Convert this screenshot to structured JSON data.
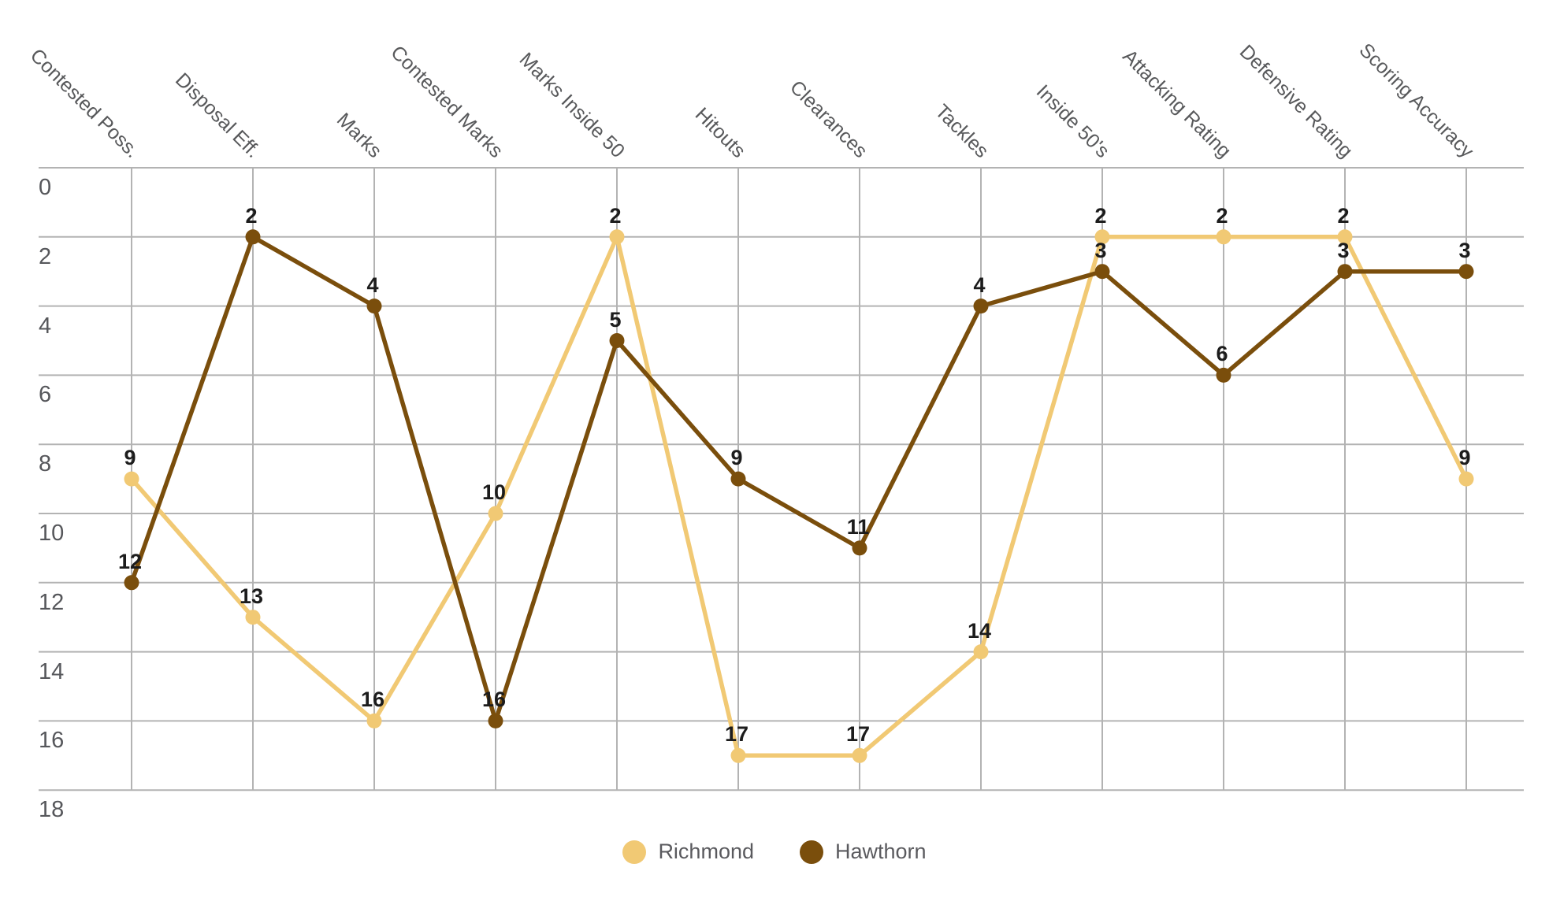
{
  "chart_data": {
    "type": "line",
    "title": "",
    "categories": [
      "Contested Poss.",
      "Disposal Eff.",
      "Marks",
      "Contested Marks",
      "Marks Inside 50",
      "Hitouts",
      "Clearances",
      "Tackles",
      "Inside 50's",
      "Attacking Rating",
      "Defensive Rating",
      "Scoring Accuracy"
    ],
    "series": [
      {
        "name": "Richmond",
        "color": "#F1C974",
        "values": [
          9,
          13,
          16,
          10,
          2,
          17,
          17,
          14,
          2,
          2,
          2,
          9
        ]
      },
      {
        "name": "Hawthorn",
        "color": "#7A4E0C",
        "values": [
          12,
          2,
          4,
          16,
          5,
          9,
          11,
          4,
          3,
          6,
          3,
          3
        ]
      }
    ],
    "y_axis": {
      "ticks": [
        0,
        2,
        4,
        6,
        8,
        10,
        12,
        14,
        16,
        18
      ],
      "min": 0,
      "max": 18,
      "inverted": true
    },
    "point_labels_shown": true,
    "legend_position": "bottom",
    "grid": true,
    "gridline_color": "#b3b3b3",
    "axis_text_color": "#56575b",
    "point_label_color": "#1c1c1c"
  },
  "legend": {
    "items": [
      {
        "label": "Richmond"
      },
      {
        "label": "Hawthorn"
      }
    ]
  }
}
